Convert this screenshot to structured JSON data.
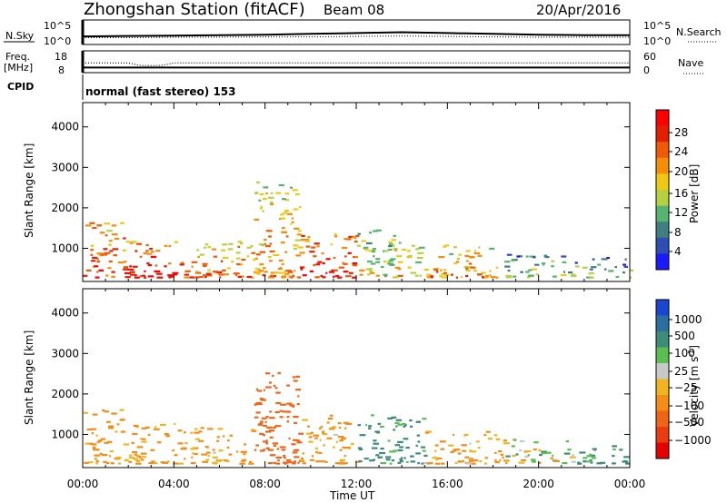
{
  "header": {
    "title": "Zhongshan Station (fitACF)",
    "beam": "Beam 08",
    "date": "20/Apr/2016"
  },
  "status_panels": {
    "nsky_label": "N.Sky",
    "nsky_ticks": [
      "10^5",
      "10^0"
    ],
    "nsearch_label": "N.Search",
    "nsearch_ticks": [
      "10^5",
      "10^0"
    ],
    "freq_label": "Freq.",
    "freq_unit": "[MHz]",
    "freq_ticks": [
      "18",
      "8"
    ],
    "nave_label": "Nave",
    "nave_ticks": [
      "60",
      "0"
    ],
    "cpid_label": "CPID",
    "cpid_text": "normal (fast stereo) 153"
  },
  "x_axis": {
    "label": "Time UT",
    "ticks": [
      "00:00",
      "04:00",
      "08:00",
      "12:00",
      "16:00",
      "20:00",
      "00:00"
    ]
  },
  "colorbars": {
    "power": {
      "label": "Power [dB]",
      "ticks": [
        "4",
        "8",
        "12",
        "16",
        "20",
        "24",
        "28"
      ],
      "colors": [
        "#1a1aff",
        "#2d4fb4",
        "#3f7f7f",
        "#55b46e",
        "#b4d240",
        "#f0c814",
        "#f58c0a",
        "#f05a05",
        "#e61e00",
        "#ff0000"
      ]
    },
    "velocity": {
      "label": "Velocity [m s",
      "label_sup": "-1",
      "label_end": "]",
      "ticks": [
        "1000",
        "500",
        "100",
        "25",
        "−25",
        "−100",
        "−500",
        "−1000"
      ],
      "colors": [
        "#1a46d2",
        "#2d6ea0",
        "#3c8c78",
        "#5abe50",
        "#c8c8c8",
        "#f0b41e",
        "#f58c14",
        "#f06414",
        "#eb3c0f",
        "#e60000"
      ]
    }
  },
  "chart_data": [
    {
      "type": "line",
      "title": "N.Sky / N.Search",
      "x": [
        0,
        2,
        4,
        6,
        8,
        10,
        12,
        14,
        16,
        18,
        20,
        22,
        24
      ],
      "series": [
        {
          "name": "N.Sky",
          "values": [
            1.5,
            1.6,
            1.7,
            1.8,
            1.9,
            2.1,
            2.3,
            2.5,
            2.3,
            2.1,
            1.9,
            1.8,
            1.8
          ]
        },
        {
          "name": "N.Search",
          "values": [
            1.2,
            1.2,
            1.3,
            1.3,
            1.4,
            1.4,
            1.5,
            1.6,
            1.5,
            1.4,
            1.3,
            1.3,
            1.3
          ]
        }
      ],
      "ylim": [
        0,
        5
      ],
      "xlim": [
        0,
        24
      ]
    },
    {
      "type": "line",
      "title": "Freq. / Nave",
      "x": [
        0,
        2,
        2.5,
        3,
        3.5,
        4,
        6,
        8,
        12,
        16,
        20,
        24
      ],
      "series": [
        {
          "name": "Freq.",
          "values": [
            9.8,
            9.8,
            9.8,
            9.8,
            9.8,
            9.8,
            9.8,
            9.8,
            9.8,
            9.8,
            9.8,
            9.8
          ]
        },
        {
          "name": "Nave",
          "values": [
            26,
            26,
            18,
            17,
            18,
            26,
            26,
            26,
            26,
            26,
            26,
            26
          ]
        }
      ],
      "xlim": [
        0,
        24
      ]
    },
    {
      "type": "heatmap",
      "title": "Power [dB]",
      "xlabel": "Time UT",
      "ylabel": "Slant Range [km]",
      "xlim": [
        0,
        24
      ],
      "ylim": [
        180,
        4600
      ],
      "y_ticks": [
        1000,
        2000,
        3000,
        4000
      ],
      "regions": [
        {
          "t": [
            0,
            1.8
          ],
          "range": [
            300,
            1700
          ],
          "power": 22
        },
        {
          "t": [
            1.8,
            4
          ],
          "range": [
            300,
            1300
          ],
          "power": 24
        },
        {
          "t": [
            4,
            7.5
          ],
          "range": [
            300,
            1200
          ],
          "power": 20
        },
        {
          "t": [
            7.5,
            9.5
          ],
          "range": [
            300,
            2700
          ],
          "power": 18
        },
        {
          "t": [
            9.5,
            12
          ],
          "range": [
            300,
            1500
          ],
          "power": 24
        },
        {
          "t": [
            12,
            15
          ],
          "range": [
            300,
            1500
          ],
          "power": 14
        },
        {
          "t": [
            15,
            18.5
          ],
          "range": [
            300,
            1100
          ],
          "power": 18
        },
        {
          "t": [
            18.5,
            21.5
          ],
          "range": [
            300,
            900
          ],
          "power": 10
        },
        {
          "t": [
            21.5,
            24
          ],
          "range": [
            300,
            800
          ],
          "power": 8
        }
      ]
    },
    {
      "type": "heatmap",
      "title": "Velocity",
      "xlabel": "Time UT",
      "ylabel": "Slant Range [km]",
      "xlim": [
        0,
        24
      ],
      "ylim": [
        180,
        4600
      ],
      "y_ticks": [
        1000,
        2000,
        3000,
        4000
      ],
      "regions": [
        {
          "t": [
            0,
            1.8
          ],
          "range": [
            300,
            1700
          ],
          "velocity": -100
        },
        {
          "t": [
            1.8,
            4
          ],
          "range": [
            300,
            1300
          ],
          "velocity": -100
        },
        {
          "t": [
            4,
            7.5
          ],
          "range": [
            300,
            1200
          ],
          "velocity": -100
        },
        {
          "t": [
            7.5,
            9.5
          ],
          "range": [
            300,
            2700
          ],
          "velocity": -300
        },
        {
          "t": [
            9.5,
            12
          ],
          "range": [
            300,
            1500
          ],
          "velocity": -100
        },
        {
          "t": [
            12,
            15
          ],
          "range": [
            300,
            1500
          ],
          "velocity": 100
        },
        {
          "t": [
            15,
            18.5
          ],
          "range": [
            300,
            1100
          ],
          "velocity": -100
        },
        {
          "t": [
            18.5,
            21.5
          ],
          "range": [
            300,
            900
          ],
          "velocity": 0
        },
        {
          "t": [
            21.5,
            24
          ],
          "range": [
            300,
            800
          ],
          "velocity": 100
        }
      ]
    }
  ]
}
